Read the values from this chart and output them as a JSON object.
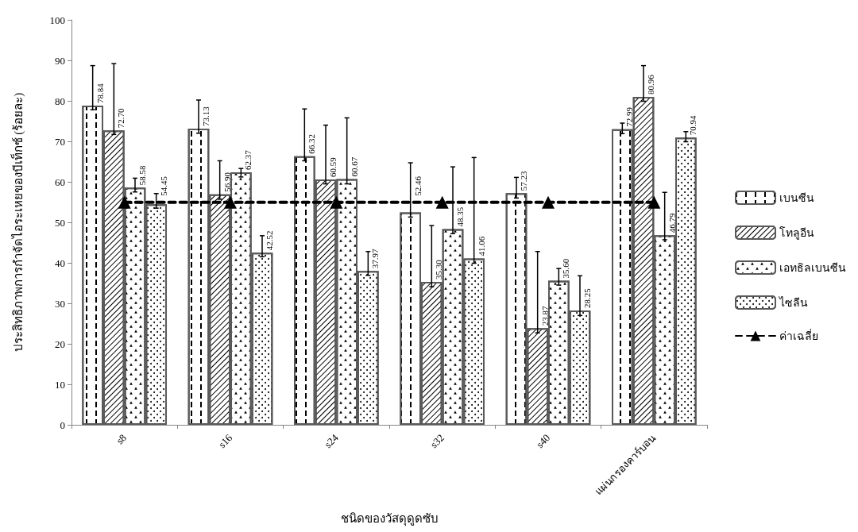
{
  "chart_data": {
    "type": "bar",
    "xlabel": "ชนิดของวัสดุดูดซับ",
    "ylabel": "ประสิทธิภาพการกำจัดไอระเหยของบีเท็กซ์ (ร้อยละ)",
    "categories": [
      "s8",
      "s16",
      "s24",
      "s32",
      "s40",
      "แผ่นกรองคาร์บอน"
    ],
    "ylim": [
      0,
      100
    ],
    "yticks": [
      0,
      10,
      20,
      30,
      40,
      50,
      60,
      70,
      80,
      90,
      100
    ],
    "grid": false,
    "legend": "right",
    "series": [
      {
        "name": "เบนซีน",
        "color": "#ffffff",
        "values": [
          78.84,
          73.13,
          66.32,
          52.46,
          57.23,
          72.99
        ],
        "value_labels": [
          "78.84",
          "73.13",
          "66.32",
          "52.46",
          "57.23",
          "72.99"
        ],
        "errors": [
          [
            77.8,
            88.7
          ],
          [
            72.0,
            80.2
          ],
          [
            65.2,
            78.0
          ],
          [
            51.3,
            64.7
          ],
          [
            56.0,
            61.1
          ],
          [
            71.9,
            74.5
          ]
        ]
      },
      {
        "name": "โทลูอีน",
        "color": "#ffffff",
        "values": [
          72.7,
          56.9,
          60.59,
          35.3,
          23.87,
          80.96
        ],
        "value_labels": [
          "72.70",
          "56.90",
          "60.59",
          "35.30",
          "23.87",
          "80.96"
        ],
        "errors": [
          [
            71.7,
            89.2
          ],
          [
            55.7,
            65.2
          ],
          [
            59.5,
            74.0
          ],
          [
            34.1,
            49.2
          ],
          [
            22.7,
            42.8
          ],
          [
            79.9,
            88.7
          ]
        ]
      },
      {
        "name": "เอทธิลเบนซีน",
        "color": "#ffffff",
        "values": [
          58.58,
          62.37,
          60.67,
          48.35,
          35.6,
          46.79
        ],
        "value_labels": [
          "58.58",
          "62.37",
          "60.67",
          "48.35",
          "35.60",
          "46.79"
        ],
        "errors": [
          [
            57.5,
            60.9
          ],
          [
            61.2,
            63.3
          ],
          [
            59.5,
            75.8
          ],
          [
            47.2,
            63.7
          ],
          [
            34.5,
            38.6
          ],
          [
            45.7,
            57.4
          ]
        ]
      },
      {
        "name": "ไซลีน",
        "color": "#ffffff",
        "values": [
          54.45,
          42.52,
          37.97,
          41.06,
          28.25,
          70.94
        ],
        "value_labels": [
          "54.45",
          "42.52",
          "37.97",
          "41.06",
          "28.25",
          "70.94"
        ],
        "errors": [
          [
            53.5,
            57.1
          ],
          [
            41.5,
            46.7
          ],
          [
            36.9,
            42.8
          ],
          [
            39.9,
            66.0
          ],
          [
            27.0,
            36.8
          ],
          [
            69.9,
            72.4
          ]
        ]
      },
      {
        "name": "ค่าเฉลี่ย",
        "type": "line",
        "color": "#000000",
        "marker": "triangle",
        "line_style": "dashed",
        "values": [
          54.95,
          54.95,
          54.95,
          54.95,
          54.95,
          54.95
        ]
      }
    ]
  }
}
